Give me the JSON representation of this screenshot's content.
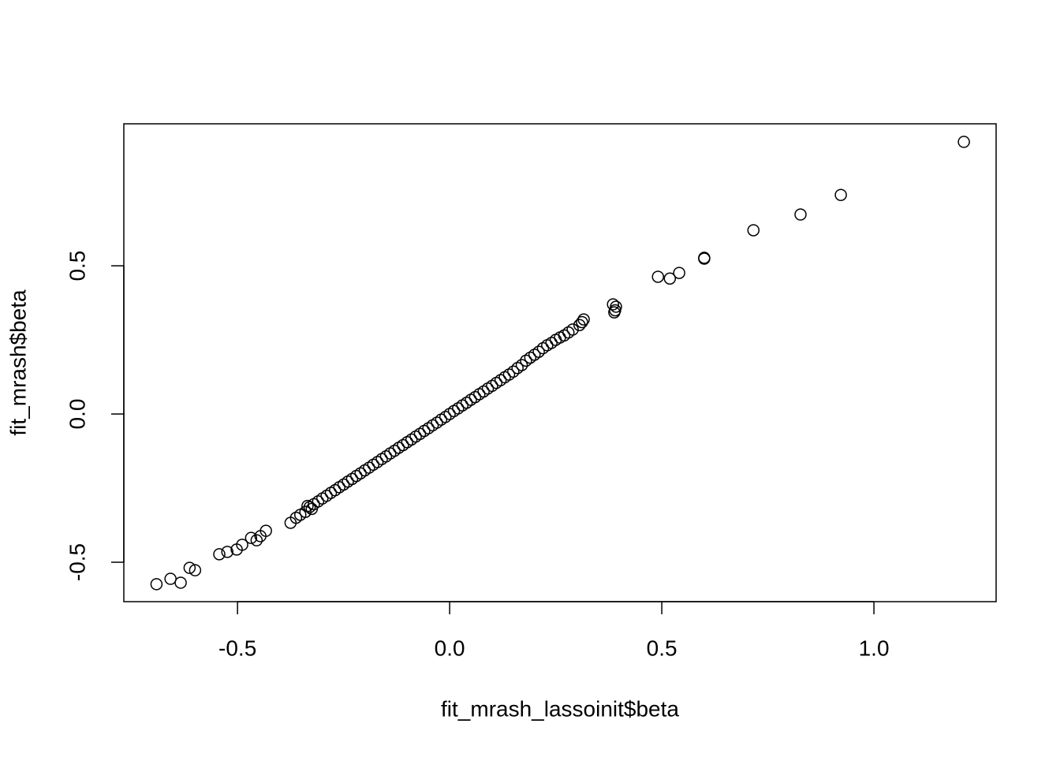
{
  "chart_data": {
    "type": "scatter",
    "x_label": "fit_mrash_lassoinit$beta",
    "y_label": "fit_mrash$beta",
    "xlim": [
      -0.768,
      1.288
    ],
    "ylim": [
      -0.633,
      0.979
    ],
    "xticks": [
      -0.5,
      {
        "value": 0,
        "label": "0.0"
      },
      0.5,
      {
        "value": 1,
        "label": "1.0"
      }
    ],
    "yticks": [
      -0.5,
      {
        "value": 0,
        "label": "0.0"
      },
      0.5
    ],
    "color": "#000000",
    "x": [
      1.212,
      0.922,
      0.827,
      0.716,
      0.6,
      0.6,
      0.541,
      0.519,
      0.491,
      0.39,
      0.385,
      0.392,
      0.388,
      0.316,
      0.312,
      0.306,
      0.29,
      -0.691,
      -0.658,
      -0.634,
      -0.613,
      -0.6,
      -0.543,
      -0.524,
      -0.502,
      -0.489,
      -0.468,
      -0.455,
      -0.446,
      -0.433,
      -0.375,
      -0.362,
      -0.352,
      -0.34,
      -0.335,
      -0.325,
      -0.33,
      -0.32,
      -0.31,
      -0.3,
      -0.29,
      -0.28,
      -0.27,
      -0.26,
      -0.25,
      -0.24,
      -0.23,
      -0.22,
      -0.21,
      -0.2,
      -0.19,
      -0.18,
      -0.17,
      -0.16,
      -0.15,
      -0.14,
      -0.13,
      -0.12,
      -0.11,
      -0.1,
      -0.09,
      -0.08,
      -0.07,
      -0.06,
      -0.05,
      -0.04,
      -0.03,
      -0.02,
      -0.01,
      0,
      0.01,
      0.02,
      0.03,
      0.04,
      0.05,
      0.06,
      0.07,
      0.08,
      0.09,
      0.1,
      0.11,
      0.12,
      0.13,
      0.14,
      0.15,
      0.16,
      0.17,
      0.18,
      0.19,
      0.2,
      0.21,
      0.22,
      0.23,
      0.24,
      0.25,
      0.26,
      0.27,
      0.28
    ],
    "y": [
      0.918,
      0.739,
      0.673,
      0.62,
      0.527,
      0.524,
      0.476,
      0.457,
      0.463,
      0.35,
      0.37,
      0.362,
      0.343,
      0.319,
      0.31,
      0.3,
      0.285,
      -0.574,
      -0.556,
      -0.569,
      -0.519,
      -0.527,
      -0.473,
      -0.465,
      -0.457,
      -0.441,
      -0.418,
      -0.426,
      -0.412,
      -0.394,
      -0.367,
      -0.35,
      -0.34,
      -0.33,
      -0.31,
      -0.32,
      -0.314,
      -0.304,
      -0.295,
      -0.285,
      -0.276,
      -0.266,
      -0.257,
      -0.247,
      -0.238,
      -0.228,
      -0.219,
      -0.209,
      -0.2,
      -0.19,
      -0.181,
      -0.171,
      -0.162,
      -0.152,
      -0.143,
      -0.133,
      -0.124,
      -0.114,
      -0.105,
      -0.095,
      -0.086,
      -0.076,
      -0.067,
      -0.057,
      -0.048,
      -0.038,
      -0.029,
      -0.019,
      -0.01,
      0,
      0.01,
      0.019,
      0.029,
      0.038,
      0.048,
      0.057,
      0.067,
      0.076,
      0.086,
      0.095,
      0.105,
      0.114,
      0.124,
      0.133,
      0.143,
      0.155,
      0.165,
      0.18,
      0.19,
      0.2,
      0.21,
      0.222,
      0.232,
      0.24,
      0.25,
      0.258,
      0.265,
      0.275
    ]
  }
}
